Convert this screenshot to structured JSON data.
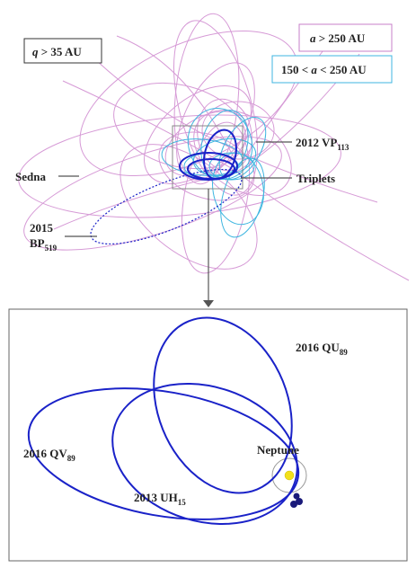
{
  "legend": {
    "q_box": {
      "var": "q",
      "rest": " > 35 AU"
    },
    "a_box": {
      "var": "a",
      "rest": " > 250 AU",
      "color": "#c77fc9"
    },
    "a_mid_box": {
      "pre": "150 < ",
      "var": "a",
      "rest": " < 250 AU",
      "color": "#3fb6e0"
    }
  },
  "labels": {
    "vp113": {
      "main": "2012 VP",
      "sub": "113"
    },
    "sedna": {
      "main": "Sedna"
    },
    "triplets": {
      "main": "Triplets"
    },
    "bp519": {
      "line1": "2015",
      "main": "BP",
      "sub": "519"
    },
    "qu89": {
      "main": "2016 QU",
      "sub": "89"
    },
    "qv89": {
      "main": "2016 QV",
      "sub": "89"
    },
    "uh15": {
      "main": "2013 UH",
      "sub": "15"
    },
    "neptune": {
      "main": "Neptune"
    }
  },
  "colors": {
    "pink_orbit": "#d69ad6",
    "cyan_orbit": "#3fb6e0",
    "blue_orbit": "#1a22c8",
    "sun": "#f2e01a",
    "planet_dot": "#1a1a7a"
  }
}
